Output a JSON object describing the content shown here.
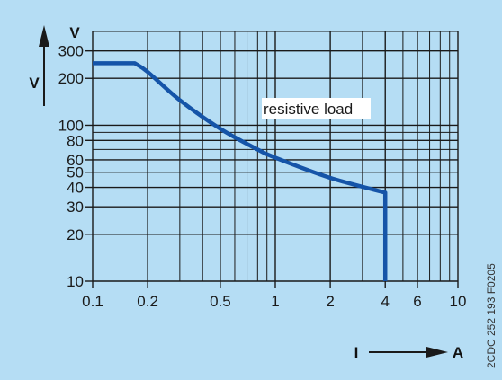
{
  "colors": {
    "background": "#b5ddf4",
    "grid": "#1a1a1a",
    "curve": "#1554a8",
    "annotation_box": "#ffffff",
    "text": "#1a1a1a"
  },
  "chart_data": {
    "type": "line",
    "x_scale": "log",
    "y_scale": "log",
    "xlim": [
      0.1,
      10
    ],
    "ylim": [
      10,
      400
    ],
    "grid": true,
    "x_major_ticks": [
      0.1,
      0.2,
      0.5,
      1,
      2,
      4,
      6,
      10
    ],
    "x_minor_ticks": [
      0.3,
      0.4,
      0.6,
      0.7,
      0.8,
      0.9,
      3,
      5,
      7,
      8,
      9
    ],
    "y_major_ticks": [
      10,
      20,
      30,
      40,
      50,
      60,
      80,
      100,
      200,
      300
    ],
    "y_minor_ticks": [
      70,
      90,
      400
    ],
    "x_tick_labels": [
      "0.1",
      "0.2",
      "0.5",
      "1",
      "2",
      "4",
      "6",
      "10"
    ],
    "y_tick_labels": [
      "10",
      "20",
      "30",
      "40",
      "50",
      "60",
      "80",
      "100",
      "200",
      "300"
    ],
    "x_axis_symbol": "I",
    "x_axis_unit": "A",
    "y_axis_symbol": "V",
    "y_axis_unit": "V",
    "annotation": "resistive load",
    "series": [
      {
        "points": [
          [
            0.1,
            250
          ],
          [
            0.17,
            250
          ],
          [
            0.2,
            220
          ],
          [
            0.3,
            145
          ],
          [
            0.5,
            95
          ],
          [
            0.8,
            70
          ],
          [
            1,
            62
          ],
          [
            2,
            46
          ],
          [
            4,
            37
          ],
          [
            4,
            10
          ]
        ]
      }
    ]
  },
  "document_code": "2CDC 252 193 F0205"
}
